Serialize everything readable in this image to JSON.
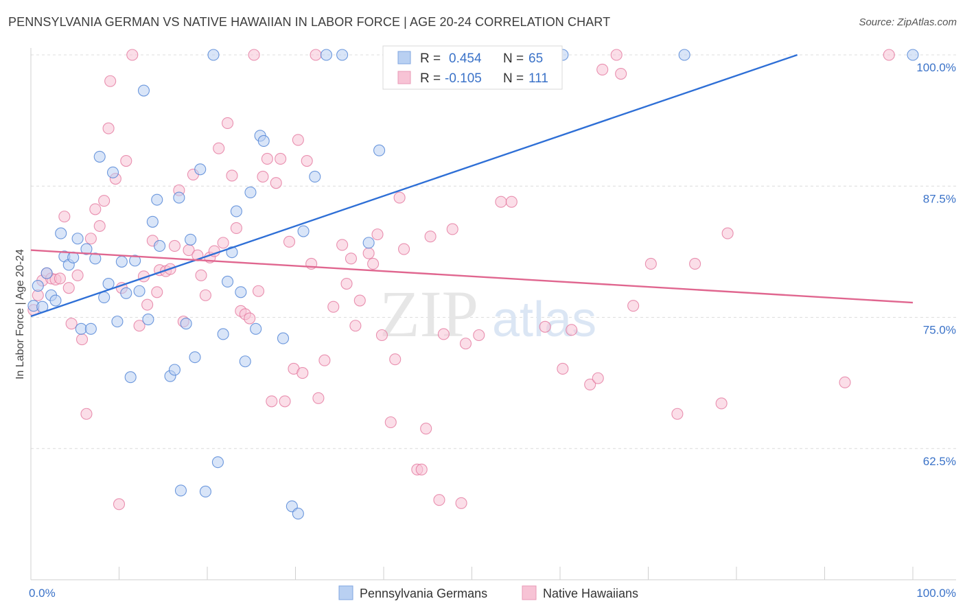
{
  "title": "PENNSYLVANIA GERMAN VS NATIVE HAWAIIAN IN LABOR FORCE | AGE 20-24 CORRELATION CHART",
  "source": "Source: ZipAtlas.com",
  "watermark": {
    "zip": "ZIP",
    "atlas": "atlas"
  },
  "colors": {
    "blue": "#4a7fd4",
    "blue_fill": "#b9d0f2",
    "blue_line": "#2e6fd6",
    "pink": "#e3779d",
    "pink_fill": "#f7c3d5",
    "pink_line": "#e0668f",
    "axis_label": "#3a72c8",
    "grid": "#dcdcdc"
  },
  "legend": {
    "rows": [
      {
        "r_label": "R =",
        "r_value": "0.454",
        "n_label": "N =",
        "n_value": "65"
      },
      {
        "r_label": "R =",
        "r_value": "-0.105",
        "n_label": "N =",
        "n_value": "111"
      }
    ]
  },
  "chart_data": {
    "type": "scatter",
    "title": "PENNSYLVANIA GERMAN VS NATIVE HAWAIIAN IN LABOR FORCE | AGE 20-24 CORRELATION CHART",
    "xlabel": "",
    "ylabel": "In Labor Force | Age 20-24",
    "xlim": [
      0,
      100
    ],
    "ylim": [
      50,
      101.3
    ],
    "x_tick_labels": [
      "0.0%",
      "100.0%"
    ],
    "y_ticks": [
      62.5,
      75.0,
      87.5,
      100.0
    ],
    "y_tick_labels": [
      "62.5%",
      "75.0%",
      "87.5%",
      "100.0%"
    ],
    "grid": true,
    "legend_position": "bottom-center",
    "series": [
      {
        "name": "Pennsylvania Germans",
        "color": "blue",
        "trend": {
          "x": [
            0,
            86.9
          ],
          "y": [
            75.1,
            100.0
          ]
        },
        "points": [
          [
            0.3,
            76.1
          ],
          [
            0.8,
            78.0
          ],
          [
            1.3,
            76.0
          ],
          [
            1.8,
            79.2
          ],
          [
            2.3,
            77.1
          ],
          [
            2.8,
            76.6
          ],
          [
            3.4,
            83.0
          ],
          [
            3.8,
            80.8
          ],
          [
            4.3,
            80.0
          ],
          [
            4.8,
            80.7
          ],
          [
            5.3,
            82.5
          ],
          [
            5.7,
            73.9
          ],
          [
            6.3,
            81.5
          ],
          [
            6.8,
            73.9
          ],
          [
            7.3,
            80.6
          ],
          [
            7.8,
            90.3
          ],
          [
            8.3,
            76.9
          ],
          [
            8.8,
            78.2
          ],
          [
            9.3,
            88.8
          ],
          [
            9.8,
            74.6
          ],
          [
            10.3,
            80.3
          ],
          [
            10.8,
            77.3
          ],
          [
            11.3,
            69.3
          ],
          [
            11.8,
            80.4
          ],
          [
            12.3,
            77.5
          ],
          [
            12.8,
            96.6
          ],
          [
            13.3,
            74.8
          ],
          [
            13.8,
            84.1
          ],
          [
            14.3,
            86.2
          ],
          [
            14.6,
            81.8
          ],
          [
            15.8,
            69.4
          ],
          [
            16.3,
            70.0
          ],
          [
            16.8,
            86.4
          ],
          [
            17.0,
            58.5
          ],
          [
            17.6,
            74.4
          ],
          [
            18.1,
            82.4
          ],
          [
            18.6,
            71.2
          ],
          [
            19.2,
            89.1
          ],
          [
            19.8,
            58.4
          ],
          [
            20.7,
            100.0
          ],
          [
            21.2,
            61.2
          ],
          [
            21.8,
            73.4
          ],
          [
            22.3,
            78.4
          ],
          [
            22.8,
            81.2
          ],
          [
            23.3,
            85.1
          ],
          [
            23.8,
            77.4
          ],
          [
            24.3,
            70.8
          ],
          [
            24.9,
            86.9
          ],
          [
            25.5,
            73.9
          ],
          [
            26.0,
            92.3
          ],
          [
            26.4,
            91.8
          ],
          [
            28.6,
            73.0
          ],
          [
            29.6,
            57.0
          ],
          [
            30.3,
            56.3
          ],
          [
            30.9,
            83.2
          ],
          [
            32.2,
            88.4
          ],
          [
            33.5,
            100.0
          ],
          [
            35.3,
            100.0
          ],
          [
            38.3,
            82.1
          ],
          [
            39.5,
            90.9
          ],
          [
            43.8,
            100.0
          ],
          [
            58.7,
            100.0
          ],
          [
            60.3,
            100.0
          ],
          [
            74.1,
            100.0
          ],
          [
            100.0,
            100.0
          ]
        ]
      },
      {
        "name": "Native Hawaiians",
        "color": "pink",
        "trend": {
          "x": [
            0,
            100
          ],
          "y": [
            81.4,
            76.4
          ]
        },
        "points": [
          [
            0.3,
            75.7
          ],
          [
            0.8,
            77.1
          ],
          [
            1.3,
            78.5
          ],
          [
            1.8,
            79.2
          ],
          [
            2.3,
            78.7
          ],
          [
            2.8,
            78.6
          ],
          [
            3.3,
            78.7
          ],
          [
            3.8,
            84.6
          ],
          [
            4.3,
            77.8
          ],
          [
            4.6,
            74.4
          ],
          [
            5.3,
            79.0
          ],
          [
            5.8,
            72.9
          ],
          [
            6.3,
            65.8
          ],
          [
            6.8,
            82.5
          ],
          [
            7.3,
            85.3
          ],
          [
            7.8,
            83.7
          ],
          [
            8.3,
            86.1
          ],
          [
            8.8,
            93.0
          ],
          [
            9.0,
            97.5
          ],
          [
            9.6,
            88.2
          ],
          [
            10.0,
            57.2
          ],
          [
            10.3,
            77.8
          ],
          [
            10.8,
            89.9
          ],
          [
            11.5,
            100.0
          ],
          [
            12.3,
            74.2
          ],
          [
            12.8,
            78.9
          ],
          [
            13.2,
            76.2
          ],
          [
            13.8,
            82.3
          ],
          [
            14.3,
            77.4
          ],
          [
            14.6,
            79.5
          ],
          [
            15.3,
            79.4
          ],
          [
            15.8,
            79.6
          ],
          [
            16.3,
            81.8
          ],
          [
            16.8,
            87.1
          ],
          [
            17.3,
            74.6
          ],
          [
            17.9,
            81.4
          ],
          [
            18.4,
            88.6
          ],
          [
            18.9,
            80.9
          ],
          [
            19.3,
            79.0
          ],
          [
            19.8,
            77.1
          ],
          [
            20.3,
            80.7
          ],
          [
            20.8,
            81.3
          ],
          [
            21.3,
            91.1
          ],
          [
            21.8,
            82.1
          ],
          [
            22.3,
            93.5
          ],
          [
            22.8,
            88.5
          ],
          [
            23.3,
            83.5
          ],
          [
            23.8,
            75.6
          ],
          [
            24.3,
            75.3
          ],
          [
            24.8,
            74.9
          ],
          [
            25.3,
            100.0
          ],
          [
            25.8,
            77.5
          ],
          [
            26.3,
            88.4
          ],
          [
            26.8,
            90.1
          ],
          [
            27.3,
            67.0
          ],
          [
            27.8,
            87.8
          ],
          [
            28.3,
            90.1
          ],
          [
            28.8,
            67.0
          ],
          [
            29.3,
            82.2
          ],
          [
            29.8,
            70.1
          ],
          [
            30.3,
            91.9
          ],
          [
            30.8,
            69.7
          ],
          [
            31.3,
            89.9
          ],
          [
            31.8,
            80.1
          ],
          [
            32.3,
            100.0
          ],
          [
            32.6,
            67.3
          ],
          [
            33.3,
            70.9
          ],
          [
            34.3,
            76.0
          ],
          [
            35.3,
            81.9
          ],
          [
            35.8,
            78.2
          ],
          [
            36.3,
            80.6
          ],
          [
            36.8,
            74.2
          ],
          [
            37.3,
            76.6
          ],
          [
            38.3,
            81.1
          ],
          [
            38.8,
            80.1
          ],
          [
            39.3,
            82.9
          ],
          [
            39.8,
            73.3
          ],
          [
            40.8,
            65.0
          ],
          [
            41.3,
            71.0
          ],
          [
            41.8,
            86.4
          ],
          [
            42.3,
            81.5
          ],
          [
            43.8,
            60.5
          ],
          [
            44.3,
            60.5
          ],
          [
            44.8,
            64.4
          ],
          [
            45.3,
            82.7
          ],
          [
            46.3,
            57.6
          ],
          [
            46.8,
            73.4
          ],
          [
            47.3,
            100.0
          ],
          [
            47.8,
            83.4
          ],
          [
            48.8,
            57.3
          ],
          [
            49.3,
            72.5
          ],
          [
            50.8,
            73.3
          ],
          [
            53.3,
            86.0
          ],
          [
            54.5,
            86.0
          ],
          [
            55.3,
            100.0
          ],
          [
            58.3,
            74.1
          ],
          [
            60.3,
            70.1
          ],
          [
            61.3,
            73.8
          ],
          [
            63.4,
            68.6
          ],
          [
            64.3,
            69.2
          ],
          [
            64.8,
            98.6
          ],
          [
            66.4,
            100.0
          ],
          [
            66.9,
            98.2
          ],
          [
            68.3,
            76.1
          ],
          [
            70.3,
            80.1
          ],
          [
            73.3,
            65.8
          ],
          [
            75.3,
            80.1
          ],
          [
            78.3,
            66.8
          ],
          [
            79.0,
            83.0
          ],
          [
            92.3,
            68.8
          ],
          [
            97.3,
            100.0
          ]
        ]
      }
    ]
  }
}
